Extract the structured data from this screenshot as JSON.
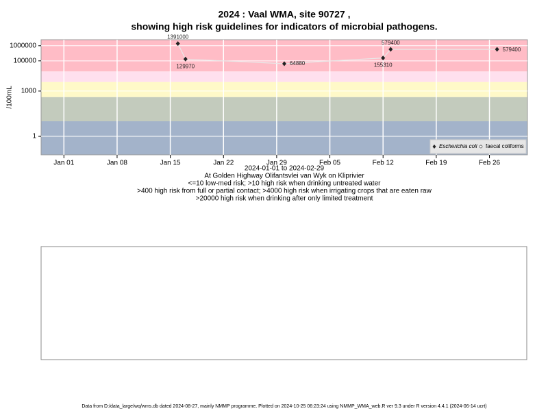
{
  "chart_data": {
    "type": "line",
    "title": "2024 : Vaal WMA, site 90727 ,",
    "title2": "showing high risk guidelines for indicators of microbial pathogens.",
    "subtitle_lines": [
      "2024-01-01 to 2024-02-29",
      "At Golden Highway Olifantsvlei van Wyk on Kliprivier",
      "<=10 low-med risk; >10 high risk when drinking untreated water",
      ">400 high risk from full or partial contact; >4000 high risk when irrigating crops that are eaten raw",
      ">20000 high risk when drinking after only limited treatment"
    ],
    "ylabel": "/100mL",
    "footer": "Data from D:/data_large/wq/wms.db dated 2024-08-27, mainly NMMP programme. Plotted on 2024-10-25 06:23:24 using NMMP_WMA_web.R ver 9.3 under R version 4.4.1 (2024-06-14 ucrt)",
    "log_y": true,
    "grid": true,
    "legend_position": "bottom-right",
    "x": [
      "2024-01-16",
      "2024-01-17",
      "2024-01-30",
      "2024-02-12",
      "2024-02-13",
      "2024-02-27"
    ],
    "series": [
      {
        "name": "Escherichia coli",
        "color": "#222222",
        "line_color": "#e8e8e8",
        "values": [
          1391000,
          129970,
          64880,
          155310,
          579400,
          579400
        ]
      },
      {
        "name": "faecal coliforms",
        "color": "#ffffff",
        "line_color": "#ffffff",
        "values": [
          null,
          null,
          null,
          null,
          null,
          null
        ]
      }
    ],
    "band_breaks": [
      10,
      400,
      4000,
      20000
    ],
    "band_colors": [
      "#a3b3ca",
      "#c3cbbd",
      "#fff9c8",
      "#ffe0ee",
      "#ffbcc6"
    ],
    "xlim": [
      "2023-12-29",
      "2024-03-02"
    ],
    "xticks": [
      {
        "value": "2024-01-01",
        "label": "Jan 01"
      },
      {
        "value": "2024-01-08",
        "label": "Jan 08"
      },
      {
        "value": "2024-01-15",
        "label": "Jan 15"
      },
      {
        "value": "2024-01-22",
        "label": "Jan 22"
      },
      {
        "value": "2024-01-29",
        "label": "Jan 29"
      },
      {
        "value": "2024-02-05",
        "label": "Feb 05"
      },
      {
        "value": "2024-02-12",
        "label": "Feb 12"
      },
      {
        "value": "2024-02-19",
        "label": "Feb 19"
      },
      {
        "value": "2024-02-26",
        "label": "Feb 26"
      }
    ],
    "ylim": [
      0.06,
      2500000
    ],
    "yticks": [
      1,
      1000,
      100000,
      1000000
    ]
  }
}
